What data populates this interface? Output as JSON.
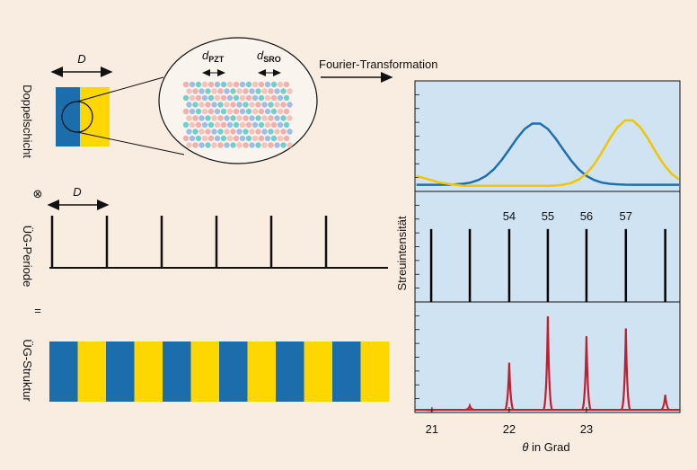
{
  "bilayer": {
    "label": "Doppelschicht",
    "thickness_label": "D",
    "layer_labels": [
      {
        "base": "d",
        "sub": "PZT"
      },
      {
        "base": "d",
        "sub": "SRO"
      }
    ]
  },
  "operator_convolve": "⊗",
  "period": {
    "label": "ÜG-Periode",
    "period_label": "D"
  },
  "operator_equals": "=",
  "structure": {
    "label": "ÜG-Struktur"
  },
  "fourier_label": "Fourier-Transformation",
  "chart_data": {
    "type": "line",
    "ylabel": "Streuintensität",
    "xlabel_symbol": "θ",
    "xlabel": "in Grad",
    "xlim": [
      20.78,
      24.21
    ],
    "xticks": [
      21,
      22,
      23
    ],
    "x": [
      20.8,
      20.9,
      21.0,
      21.1,
      21.2,
      21.3,
      21.4,
      21.5,
      21.6,
      21.7,
      21.8,
      21.9,
      22.0,
      22.1,
      22.2,
      22.3,
      22.4,
      22.5,
      22.6,
      22.7,
      22.8,
      22.9,
      23.0,
      23.1,
      23.2,
      23.3,
      23.4,
      23.5,
      23.6,
      23.7,
      23.8,
      23.9,
      24.0,
      24.1,
      24.2
    ],
    "ylim": [
      0,
      100
    ],
    "series": [
      {
        "color": "#1f6fad",
        "values": [
          6,
          6,
          6,
          6,
          6.1,
          6.4,
          6.9,
          8.0,
          10.3,
          14.1,
          19.9,
          28.1,
          37.9,
          48.0,
          56.5,
          61.4,
          61.4,
          56.5,
          48.0,
          37.9,
          28.1,
          19.9,
          14.1,
          10.3,
          8.0,
          6.9,
          6.4,
          6.1,
          6,
          6,
          6,
          6,
          6,
          6,
          6
        ]
      },
      {
        "color": "#f2c500",
        "values": [
          14,
          12,
          10,
          8,
          7,
          6,
          5,
          5,
          5,
          5,
          5,
          5,
          5,
          5,
          5,
          5,
          5,
          5,
          5.4,
          6.1,
          7.6,
          10.7,
          16.2,
          24.5,
          35.4,
          47.4,
          57.9,
          64.2,
          64.2,
          57.9,
          47.4,
          35.4,
          24.5,
          16.2,
          10.7
        ]
      }
    ],
    "lines": {
      "color": "#000000",
      "x": [
        20.99,
        21.49,
        22.0,
        22.5,
        23.0,
        23.51,
        24.02
      ],
      "values": [
        66,
        66,
        66,
        66,
        66,
        66,
        66
      ],
      "labels": [
        null,
        null,
        54,
        55,
        56,
        57,
        null
      ]
    },
    "peaks": {
      "color": "#c0202e",
      "x": [
        20.99,
        21.49,
        22.0,
        22.5,
        23.0,
        23.51,
        24.02
      ],
      "values": [
        2,
        6,
        45,
        87,
        69,
        76,
        16
      ]
    }
  }
}
